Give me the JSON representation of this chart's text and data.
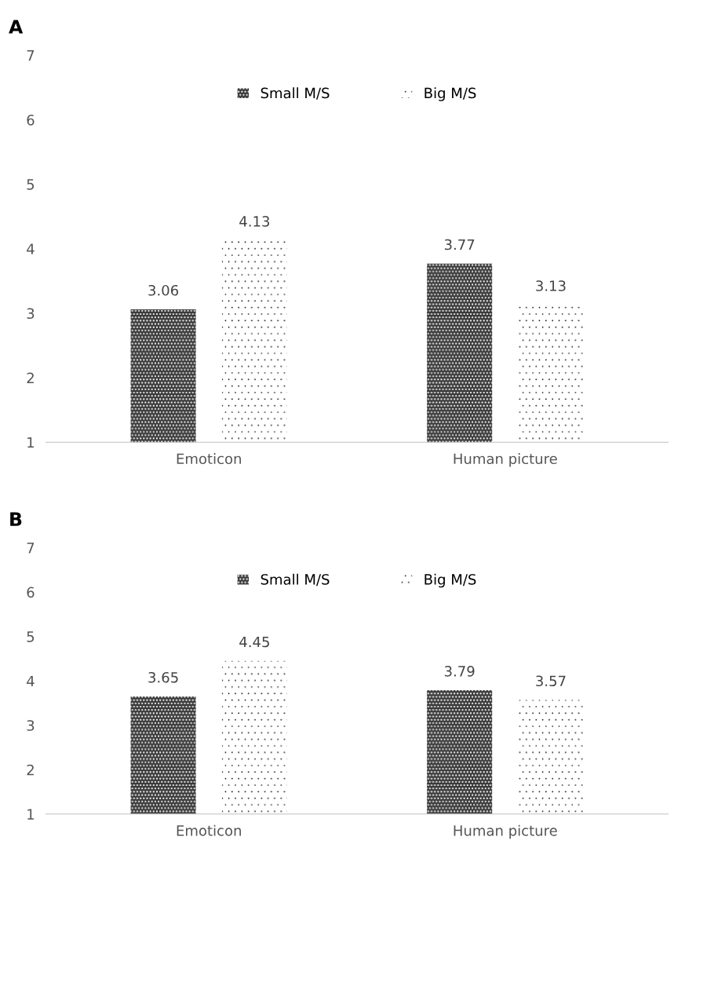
{
  "chart_data": [
    {
      "type": "bar",
      "title": "A",
      "categories": [
        "Emoticon",
        "Human picture"
      ],
      "series": [
        {
          "name": "Small M/S",
          "color": "#3a3a3a",
          "values": [
            3.06,
            3.77
          ]
        },
        {
          "name": "Big M/S",
          "color": "#ffffff",
          "values": [
            4.13,
            3.13
          ]
        }
      ],
      "ylim": [
        1,
        7
      ],
      "yticks": [
        1,
        2,
        3,
        4,
        5,
        6,
        7
      ],
      "grid": false,
      "legend": "top",
      "data_labels": true
    },
    {
      "type": "bar",
      "title": "B",
      "categories": [
        "Emoticon",
        "Human picture"
      ],
      "series": [
        {
          "name": "Small M/S",
          "color": "#3a3a3a",
          "values": [
            3.65,
            3.79
          ]
        },
        {
          "name": "Big M/S",
          "color": "#ffffff",
          "values": [
            4.45,
            3.57
          ]
        }
      ],
      "ylim": [
        1,
        7
      ],
      "yticks": [
        1,
        2,
        3,
        4,
        5,
        6,
        7
      ],
      "grid": false,
      "legend": "top",
      "data_labels": true
    }
  ]
}
